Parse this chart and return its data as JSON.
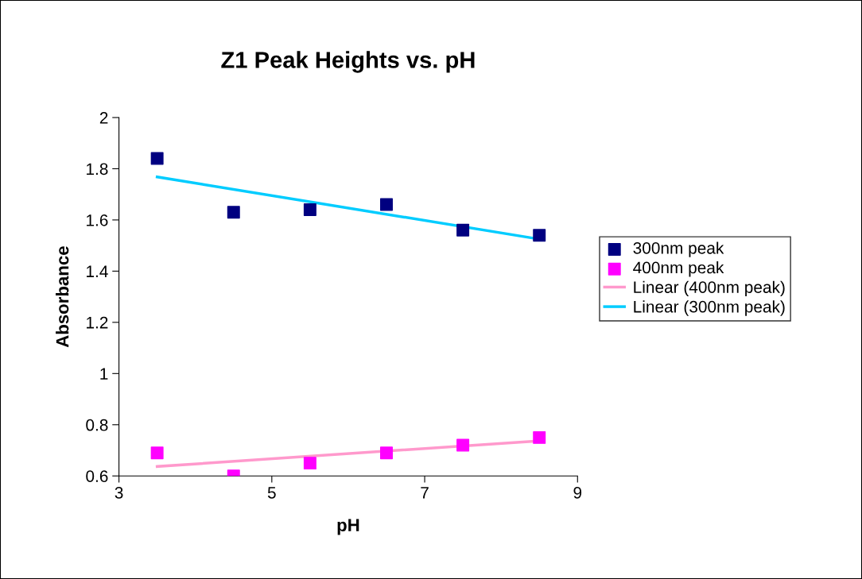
{
  "chart_data": {
    "type": "scatter",
    "title": "Z1 Peak Heights vs. pH",
    "xlabel": "pH",
    "ylabel": "Absorbance",
    "legend": "right",
    "grid": false,
    "xlim": [
      3,
      9
    ],
    "xticks": [
      3,
      5,
      7,
      9
    ],
    "ylim": [
      0.6,
      2
    ],
    "yticks": [
      0.6,
      0.8,
      1,
      1.2,
      1.4,
      1.6,
      1.8,
      2
    ],
    "series": [
      {
        "name": "300nm peak",
        "marker": "square",
        "color": "#000080",
        "x": [
          3.5,
          4.5,
          5.5,
          6.5,
          7.5,
          8.5
        ],
        "values": [
          1.84,
          1.63,
          1.64,
          1.66,
          1.56,
          1.54
        ]
      },
      {
        "name": "400nm peak",
        "marker": "square",
        "color": "#ff00ff",
        "x": [
          3.5,
          4.5,
          5.5,
          6.5,
          7.5,
          8.5
        ],
        "values": [
          0.69,
          0.6,
          0.65,
          0.69,
          0.72,
          0.75
        ]
      },
      {
        "name": "Linear (400nm peak)",
        "type": "line",
        "marker": "none",
        "color": "#ff99cc",
        "x": [
          3.5,
          8.5
        ],
        "values": [
          0.637,
          0.737
        ]
      },
      {
        "name": "Linear (300nm peak)",
        "type": "line",
        "marker": "none",
        "color": "#00ccff",
        "x": [
          3.5,
          8.5
        ],
        "values": [
          1.768,
          1.525
        ]
      }
    ]
  }
}
